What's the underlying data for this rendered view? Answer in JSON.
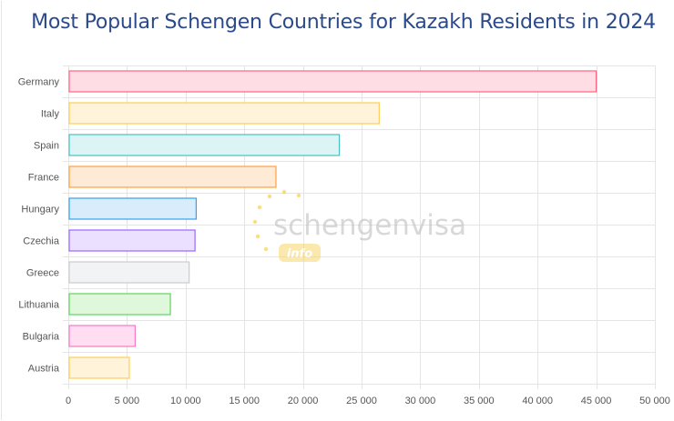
{
  "title": "Most Popular Schengen Countries for Kazakh Residents in 2024",
  "watermark": {
    "brand": "schengenvisa",
    "sub": "info"
  },
  "chart_data": {
    "type": "bar",
    "orientation": "horizontal",
    "title": "Most Popular Schengen Countries for Kazakh Residents in 2024",
    "categories": [
      "Germany",
      "Italy",
      "Spain",
      "France",
      "Hungary",
      "Czechia",
      "Greece",
      "Lithuania",
      "Bulgaria",
      "Austria"
    ],
    "values": [
      45000,
      26500,
      23100,
      17700,
      10900,
      10800,
      10300,
      8700,
      5700,
      5200
    ],
    "xlim": [
      0,
      50000
    ],
    "xticks": [
      0,
      5000,
      10000,
      15000,
      20000,
      25000,
      30000,
      35000,
      40000,
      45000,
      50000
    ],
    "xtick_labels": [
      "0",
      "5 000",
      "10 000",
      "15 000",
      "20 000",
      "25 000",
      "30 000",
      "35 000",
      "40 000",
      "45 000",
      "50 000"
    ],
    "grid": true,
    "legend": "none",
    "colors": {
      "fill": [
        "#ffdde4",
        "#fff4d9",
        "#dcf4f3",
        "#ffead6",
        "#d9ecfb",
        "#ebe0ff",
        "#f2f3f4",
        "#dff7da",
        "#ffdef2",
        "#fff4d9"
      ],
      "stroke": [
        "#ff6384",
        "#ffcd56",
        "#4bc0c0",
        "#ff9f40",
        "#36a2eb",
        "#9966ff",
        "#c9cbcf",
        "#5ed45e",
        "#f57ac8",
        "#ffcd56"
      ]
    }
  }
}
